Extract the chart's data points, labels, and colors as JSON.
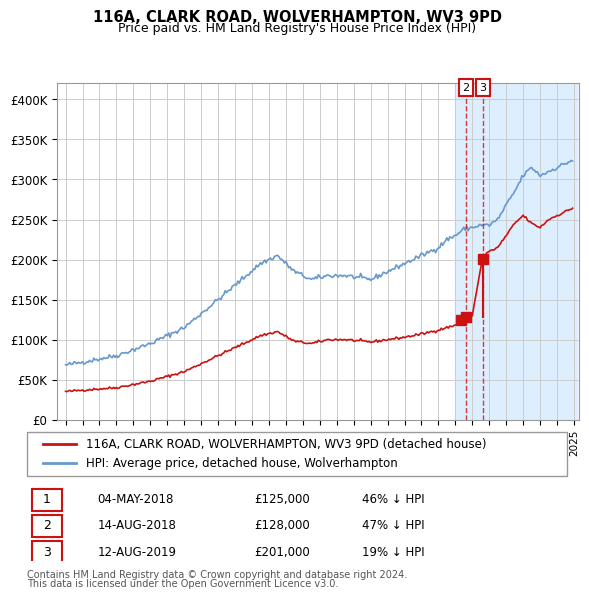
{
  "title": "116A, CLARK ROAD, WOLVERHAMPTON, WV3 9PD",
  "subtitle": "Price paid vs. HM Land Registry's House Price Index (HPI)",
  "hpi_label": "HPI: Average price, detached house, Wolverhampton",
  "property_label": "116A, CLARK ROAD, WOLVERHAMPTON, WV3 9PD (detached house)",
  "transactions": [
    {
      "id": 1,
      "date": "04-MAY-2018",
      "price": 125000,
      "pct": "46%",
      "dir": "↓"
    },
    {
      "id": 2,
      "date": "14-AUG-2018",
      "price": 128000,
      "pct": "47%",
      "dir": "↓"
    },
    {
      "id": 3,
      "date": "12-AUG-2019",
      "price": 201000,
      "pct": "19%",
      "dir": "↓"
    }
  ],
  "footnote1": "Contains HM Land Registry data © Crown copyright and database right 2024.",
  "footnote2": "This data is licensed under the Open Government Licence v3.0.",
  "hpi_color": "#6699cc",
  "property_color": "#cc1111",
  "background_color": "#ddeeff",
  "plot_bg": "#ffffff",
  "grid_color": "#cccccc",
  "ylim": [
    0,
    420000
  ],
  "yticks": [
    0,
    50000,
    100000,
    150000,
    200000,
    250000,
    300000,
    350000,
    400000
  ],
  "xstart": 1995,
  "xend": 2025
}
